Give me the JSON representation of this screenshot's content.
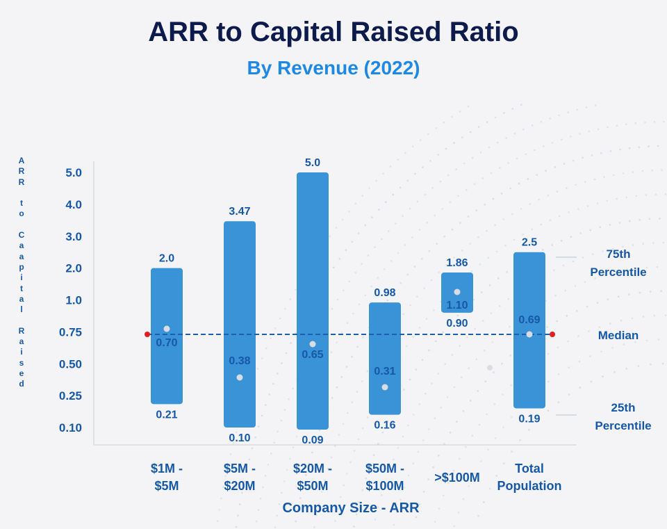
{
  "colors": {
    "title": "#0d1b4c",
    "subtitle": "#1e88e5",
    "bar": "#3a93d6",
    "label": "#1558a8",
    "median_line": "#1b5fb0",
    "median_marker": "#e02020",
    "dot": "#d9dde3"
  },
  "chart_data": {
    "type": "range-bar",
    "title": "ARR to Capital Raised Ratio",
    "subtitle": "By Revenue (2022)",
    "xlabel": "Company Size - ARR",
    "ylabel": "ARR to Caapital Raised",
    "y_scale": "non-linear (categorical ticks)",
    "y_ticks": [
      "5.0",
      "4.0",
      "3.0",
      "2.0",
      "1.0",
      "0.75",
      "0.50",
      "0.25",
      "0.10"
    ],
    "categories": [
      [
        "$1M -",
        "$5M"
      ],
      [
        "$5M -",
        "$20M"
      ],
      [
        "$20M -",
        "$50M"
      ],
      [
        "$50M -",
        "$100M"
      ],
      [
        ">$100M"
      ],
      [
        "Total",
        "Population"
      ]
    ],
    "series": [
      {
        "name": "75th Percentile",
        "labels": [
          "2.0",
          "3.47",
          "5.0",
          "0.98",
          "1.86",
          "2.5"
        ],
        "values": [
          2.0,
          3.47,
          5.0,
          0.98,
          1.86,
          2.5
        ]
      },
      {
        "name": "Median",
        "labels": [
          "0.70",
          "0.38",
          "0.65",
          "0.31",
          "1.10",
          "0.69"
        ],
        "values": [
          0.7,
          0.38,
          0.65,
          0.31,
          1.1,
          0.69
        ]
      },
      {
        "name": "25th Percentile",
        "labels": [
          "0.21",
          "0.10",
          "0.09",
          "0.16",
          "0.90",
          "0.19"
        ],
        "values": [
          0.21,
          0.1,
          0.09,
          0.16,
          0.9,
          0.19
        ]
      }
    ],
    "overall_median": 0.7,
    "legend": [
      "75th Percentile",
      "Median",
      "25th Percentile"
    ]
  }
}
